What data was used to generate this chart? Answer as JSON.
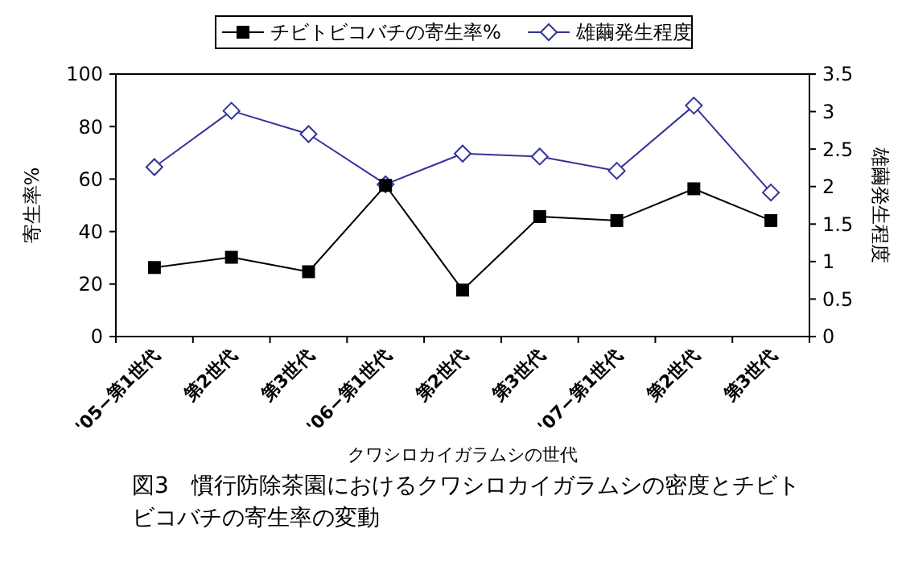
{
  "chart_data": {
    "type": "line",
    "title": "図3　慣行防除茶園におけるクワシロカイガラムシの密度とチビトビコバチの寄生率の変動",
    "xlabel": "クワシロカイガラムシの世代",
    "ylabel": "寄生率%",
    "y2label": "雄繭発生程度",
    "categories": [
      "'05−第1世代",
      "第2世代",
      "第3世代",
      "'06−第1世代",
      "第2世代",
      "第3世代",
      "'07−第1世代",
      "第2世代",
      "第3世代"
    ],
    "series": [
      {
        "name": "チビトビコバチの寄生率%",
        "color": "#000000",
        "marker": "square",
        "values": [
          26.3,
          30.2,
          24.7,
          57.6,
          17.7,
          45.7,
          44.2,
          56.3,
          44.2
        ]
      },
      {
        "name": "雄繭発生程度",
        "color": "#333399",
        "marker": "diamond",
        "axis": "y2",
        "values": [
          2.26,
          3.01,
          2.7,
          2.03,
          2.44,
          2.4,
          2.21,
          3.08,
          1.92
        ]
      }
    ],
    "ylim": [
      0,
      100
    ],
    "yticks": [
      0,
      20,
      40,
      60,
      80,
      100
    ],
    "y2lim": [
      0,
      3.5
    ],
    "y2ticks": [
      0,
      0.5,
      1,
      1.5,
      2,
      2.5,
      3,
      3.5
    ],
    "legend": "top",
    "grid": false
  }
}
